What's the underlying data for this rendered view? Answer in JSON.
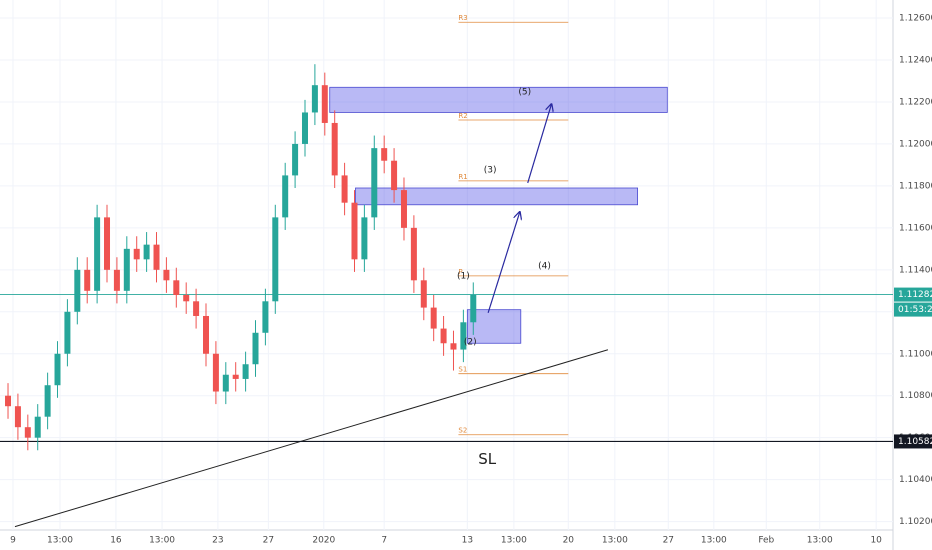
{
  "chart_data": {
    "type": "candlestick",
    "up_color": "#26a69a",
    "down_color": "#ef5350",
    "grid": true,
    "x": [
      0,
      1,
      2,
      3,
      4,
      5,
      6,
      7,
      8,
      9,
      10,
      11,
      12,
      13,
      14,
      15,
      16,
      17,
      18,
      19,
      20,
      21,
      22,
      23,
      24,
      25,
      26,
      27,
      28,
      29,
      30,
      31,
      32,
      33,
      34,
      35,
      36,
      37,
      38,
      39,
      40,
      41,
      42,
      43,
      44,
      45,
      46,
      47
    ],
    "open": [
      1.108,
      1.1075,
      1.1065,
      1.106,
      1.107,
      1.1085,
      1.11,
      1.112,
      1.114,
      1.113,
      1.1165,
      1.114,
      1.113,
      1.115,
      1.1145,
      1.1152,
      1.114,
      1.1135,
      1.1128,
      1.1125,
      1.1118,
      1.11,
      1.1082,
      1.109,
      1.1088,
      1.1095,
      1.111,
      1.1125,
      1.1165,
      1.1185,
      1.12,
      1.1215,
      1.1228,
      1.121,
      1.1185,
      1.1172,
      1.1145,
      1.1165,
      1.1198,
      1.1192,
      1.1178,
      1.116,
      1.1135,
      1.1122,
      1.1112,
      1.1105,
      1.1102,
      1.1115
    ],
    "high": [
      1.1086,
      1.1081,
      1.1071,
      1.1076,
      1.1091,
      1.1106,
      1.1126,
      1.1146,
      1.1146,
      1.1171,
      1.1171,
      1.1146,
      1.1156,
      1.1156,
      1.1158,
      1.1158,
      1.1146,
      1.1141,
      1.1134,
      1.1131,
      1.1124,
      1.1106,
      1.1096,
      1.1096,
      1.1101,
      1.1116,
      1.1131,
      1.1171,
      1.1191,
      1.1206,
      1.1221,
      1.1238,
      1.1234,
      1.1216,
      1.1191,
      1.1178,
      1.1171,
      1.1204,
      1.1204,
      1.1198,
      1.1184,
      1.1166,
      1.1141,
      1.1128,
      1.1118,
      1.1111,
      1.1121,
      1.1134
    ],
    "low": [
      1.1069,
      1.1059,
      1.1054,
      1.1054,
      1.1064,
      1.1079,
      1.1094,
      1.1114,
      1.1124,
      1.1124,
      1.1134,
      1.1124,
      1.1124,
      1.1139,
      1.1139,
      1.1134,
      1.1129,
      1.1122,
      1.1119,
      1.1112,
      1.1094,
      1.1076,
      1.1076,
      1.1082,
      1.1082,
      1.1089,
      1.1104,
      1.1119,
      1.1159,
      1.1179,
      1.1194,
      1.1209,
      1.1204,
      1.1179,
      1.1166,
      1.1139,
      1.1139,
      1.1159,
      1.1186,
      1.1172,
      1.1154,
      1.1129,
      1.1116,
      1.1106,
      1.1099,
      1.1092,
      1.1096,
      1.1109
    ],
    "close": [
      1.1075,
      1.1065,
      1.106,
      1.107,
      1.1085,
      1.11,
      1.112,
      1.114,
      1.113,
      1.1165,
      1.114,
      1.113,
      1.115,
      1.1145,
      1.1152,
      1.114,
      1.1135,
      1.1128,
      1.1125,
      1.1118,
      1.11,
      1.1082,
      1.109,
      1.1088,
      1.1095,
      1.111,
      1.1125,
      1.1165,
      1.1185,
      1.12,
      1.1215,
      1.1228,
      1.121,
      1.1185,
      1.1172,
      1.1145,
      1.1165,
      1.1198,
      1.1192,
      1.1178,
      1.116,
      1.1135,
      1.1122,
      1.1112,
      1.1105,
      1.1102,
      1.1115,
      1.1128
    ],
    "xlim": [
      -0.81,
      89.4
    ],
    "ylim": [
      1.1016,
      1.12686
    ],
    "xticks": [
      {
        "value": 0.5,
        "label": "9"
      },
      {
        "value": 5.25,
        "label": "13:00"
      },
      {
        "value": 10.9,
        "label": "16"
      },
      {
        "value": 15.56,
        "label": "13:00"
      },
      {
        "value": 21.2,
        "label": "23"
      },
      {
        "value": 26.3,
        "label": "27"
      },
      {
        "value": 31.9,
        "label": "2020"
      },
      {
        "value": 38.0,
        "label": "7"
      },
      {
        "value": 46.4,
        "label": "13"
      },
      {
        "value": 51.1,
        "label": "13:00"
      },
      {
        "value": 56.6,
        "label": "20"
      },
      {
        "value": 61.3,
        "label": "13:00"
      },
      {
        "value": 66.7,
        "label": "27"
      },
      {
        "value": 71.3,
        "label": "13:00"
      },
      {
        "value": 76.6,
        "label": "Feb"
      },
      {
        "value": 82.0,
        "label": "13:00"
      },
      {
        "value": 87.7,
        "label": "10"
      }
    ],
    "yticks": [
      {
        "value": 1.126,
        "label": "1.12600"
      },
      {
        "value": 1.124,
        "label": "1.12400"
      },
      {
        "value": 1.122,
        "label": "1.12200"
      },
      {
        "value": 1.12,
        "label": "1.12000"
      },
      {
        "value": 1.118,
        "label": "1.11800"
      },
      {
        "value": 1.116,
        "label": "1.11600"
      },
      {
        "value": 1.114,
        "label": "1.11400"
      },
      {
        "value": 1.112,
        "label": "1.11200"
      },
      {
        "value": 1.11,
        "label": "1.11000"
      },
      {
        "value": 1.108,
        "label": "1.10800"
      },
      {
        "value": 1.106,
        "label": "1.10600"
      },
      {
        "value": 1.104,
        "label": "1.10400"
      },
      {
        "value": 1.102,
        "label": "1.10200"
      }
    ],
    "price_lines": [
      {
        "value": 1.11282,
        "color": "#26a69a"
      },
      {
        "value": 1.10582,
        "color": "#131722"
      }
    ],
    "countdown": "01:53:22",
    "zones": [
      {
        "x": [
          32.5,
          66.6
        ],
        "y": [
          1.1215,
          1.1227
        ]
      },
      {
        "x": [
          35.1,
          63.6
        ],
        "y": [
          1.1171,
          1.1179
        ]
      },
      {
        "x": [
          46.4,
          51.8
        ],
        "y": [
          1.1105,
          1.1121
        ]
      }
    ],
    "pivots": [
      {
        "label": "R3",
        "value": 1.1258
      },
      {
        "label": "R2",
        "value": 1.12114
      },
      {
        "label": "R1",
        "value": 1.11824
      },
      {
        "label": "P",
        "value": 1.11371
      },
      {
        "label": "S1",
        "value": 1.10905
      },
      {
        "label": "S2",
        "value": 1.10614
      }
    ],
    "pivot_x": [
      45.5,
      56.6
    ],
    "waves": [
      {
        "label": "(1)",
        "x": 46,
        "y": 1.11371
      },
      {
        "label": "(2)",
        "x": 46.7,
        "y": 1.11057
      },
      {
        "label": "(3)",
        "x": 48.7,
        "y": 1.11876
      },
      {
        "label": "(4)",
        "x": 54.2,
        "y": 1.11419
      },
      {
        "label": "(5)",
        "x": 52.2,
        "y": 1.12248
      }
    ],
    "trendline": {
      "x": [
        0.7,
        60.6
      ],
      "y": [
        1.10176,
        1.11019
      ]
    },
    "arrows": [
      {
        "x": [
          48.5,
          51.7
        ],
        "y": [
          1.11195,
          1.11676
        ]
      },
      {
        "x": [
          52.5,
          54.9
        ],
        "y": [
          1.11814,
          1.1219
        ]
      }
    ],
    "annotation": {
      "text": "SL",
      "x": 47.5,
      "y": 1.10495
    }
  }
}
